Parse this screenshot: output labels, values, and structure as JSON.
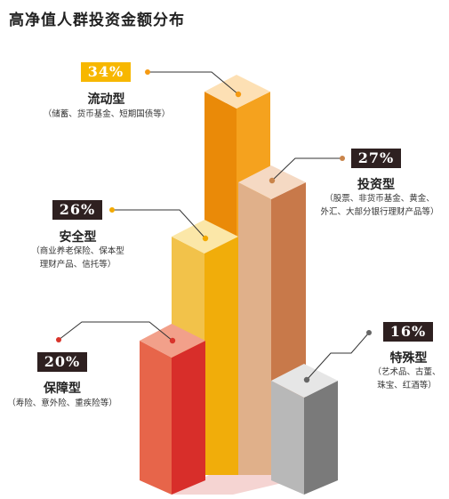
{
  "title": "高净值人群投资金额分布",
  "chart_data": {
    "type": "bar",
    "categories": [
      "流动型",
      "投资型",
      "安全型",
      "保障型",
      "特殊型"
    ],
    "values": [
      34,
      27,
      26,
      20,
      16
    ],
    "value_labels": [
      "34%",
      "27%",
      "26%",
      "20%",
      "16%"
    ],
    "descriptions": [
      "（储蓄、货币基金、短期国债等）",
      "（股票、非货币基金、黄金、\n外汇、大部分银行理财产品等）",
      "（商业养老保险、保本型\n理财产品、信托等）",
      "（寿险、意外险、重疾险等）",
      "（艺术品、古董、\n珠宝、红酒等）"
    ],
    "colors": {
      "liquid": "#f59a12",
      "invest": "#dba97f",
      "safe": "#f2c445",
      "protect": "#e44d32",
      "special": "#a9a9a9",
      "dots": [
        "#f59a12",
        "#c9844a",
        "#f2a900",
        "#d8342b",
        "#666666"
      ]
    }
  }
}
